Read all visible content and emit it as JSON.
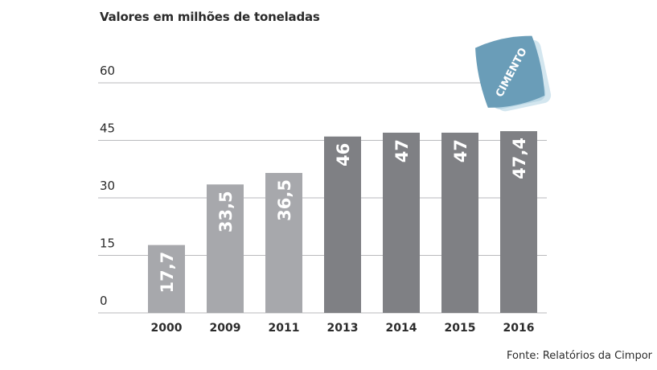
{
  "chart_data": {
    "type": "bar",
    "subtitle": "Valores em milhões de toneladas",
    "categories": [
      "2000",
      "2009",
      "2011",
      "2013",
      "2014",
      "2015",
      "2016"
    ],
    "values": [
      17.7,
      33.5,
      36.5,
      46,
      47,
      47,
      47.4
    ],
    "value_labels": [
      "17,7",
      "33,5",
      "36,5",
      "46",
      "47",
      "47",
      "47,4"
    ],
    "yticks": [
      "0",
      "15",
      "30",
      "45",
      "60"
    ],
    "ytick_values": [
      0,
      15,
      30,
      45,
      60
    ],
    "ylim": [
      0,
      60
    ],
    "grid": true,
    "colors": {
      "light_bar": "#a7a8ac",
      "dark_bar": "#7f8084",
      "gridline": "#b9babd",
      "bag_front": "#6a9db8",
      "bag_back": "#b9d6e4"
    },
    "bar_shades": [
      "light",
      "light",
      "light",
      "dark",
      "dark",
      "dark",
      "dark"
    ],
    "source": "Fonte: Relatórios da Cimpor",
    "illustration": {
      "icon": "cement-bag-icon",
      "label": "CIMENTO"
    }
  }
}
